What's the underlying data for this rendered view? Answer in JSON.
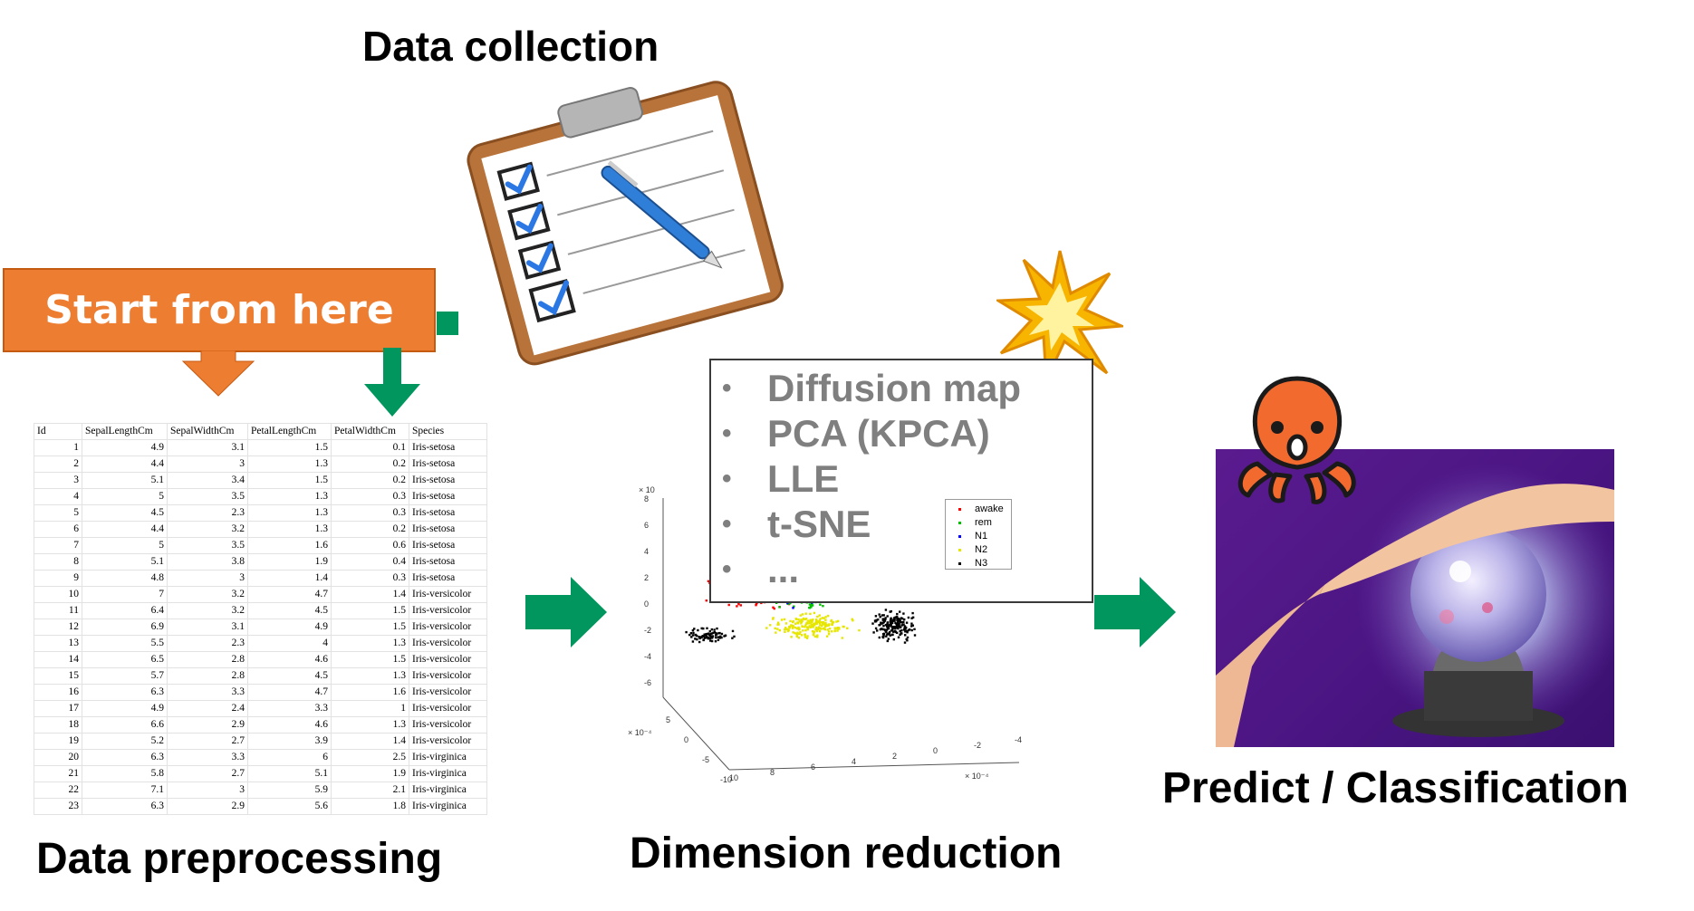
{
  "headings": {
    "data_collection": "Data collection",
    "data_preprocessing": "Data preprocessing",
    "dimension_reduction": "Dimension reduction",
    "predict": "Predict / Classification"
  },
  "start_label": "Start from here",
  "table": {
    "headers": [
      "Id",
      "SepalLengthCm",
      "SepalWidthCm",
      "PetalLengthCm",
      "PetalWidthCm",
      "Species"
    ],
    "rows": [
      [
        "1",
        "4.9",
        "3.1",
        "1.5",
        "0.1",
        "Iris-setosa"
      ],
      [
        "2",
        "4.4",
        "3",
        "1.3",
        "0.2",
        "Iris-setosa"
      ],
      [
        "3",
        "5.1",
        "3.4",
        "1.5",
        "0.2",
        "Iris-setosa"
      ],
      [
        "4",
        "5",
        "3.5",
        "1.3",
        "0.3",
        "Iris-setosa"
      ],
      [
        "5",
        "4.5",
        "2.3",
        "1.3",
        "0.3",
        "Iris-setosa"
      ],
      [
        "6",
        "4.4",
        "3.2",
        "1.3",
        "0.2",
        "Iris-setosa"
      ],
      [
        "7",
        "5",
        "3.5",
        "1.6",
        "0.6",
        "Iris-setosa"
      ],
      [
        "8",
        "5.1",
        "3.8",
        "1.9",
        "0.4",
        "Iris-setosa"
      ],
      [
        "9",
        "4.8",
        "3",
        "1.4",
        "0.3",
        "Iris-setosa"
      ],
      [
        "10",
        "7",
        "3.2",
        "4.7",
        "1.4",
        "Iris-versicolor"
      ],
      [
        "11",
        "6.4",
        "3.2",
        "4.5",
        "1.5",
        "Iris-versicolor"
      ],
      [
        "12",
        "6.9",
        "3.1",
        "4.9",
        "1.5",
        "Iris-versicolor"
      ],
      [
        "13",
        "5.5",
        "2.3",
        "4",
        "1.3",
        "Iris-versicolor"
      ],
      [
        "14",
        "6.5",
        "2.8",
        "4.6",
        "1.5",
        "Iris-versicolor"
      ],
      [
        "15",
        "5.7",
        "2.8",
        "4.5",
        "1.3",
        "Iris-versicolor"
      ],
      [
        "16",
        "6.3",
        "3.3",
        "4.7",
        "1.6",
        "Iris-versicolor"
      ],
      [
        "17",
        "4.9",
        "2.4",
        "3.3",
        "1",
        "Iris-versicolor"
      ],
      [
        "18",
        "6.6",
        "2.9",
        "4.6",
        "1.3",
        "Iris-versicolor"
      ],
      [
        "19",
        "5.2",
        "2.7",
        "3.9",
        "1.4",
        "Iris-versicolor"
      ],
      [
        "20",
        "6.3",
        "3.3",
        "6",
        "2.5",
        "Iris-virginica"
      ],
      [
        "21",
        "5.8",
        "2.7",
        "5.1",
        "1.9",
        "Iris-virginica"
      ],
      [
        "22",
        "7.1",
        "3",
        "5.9",
        "2.1",
        "Iris-virginica"
      ],
      [
        "23",
        "6.3",
        "2.9",
        "5.6",
        "1.8",
        "Iris-virginica"
      ]
    ]
  },
  "methods": [
    "Diffusion map",
    "PCA (KPCA)",
    "LLE",
    "t-SNE",
    "..."
  ],
  "legend": [
    {
      "label": "awake",
      "color": "#ff0000"
    },
    {
      "label": "rem",
      "color": "#00c000"
    },
    {
      "label": "N1",
      "color": "#0000ff"
    },
    {
      "label": "N2",
      "color": "#e6e600"
    },
    {
      "label": "N3",
      "color": "#000000"
    }
  ],
  "axes": {
    "z_exp": "× 10",
    "z_ticks": [
      "8",
      "6",
      "4",
      "2",
      "0",
      "-2",
      "-4",
      "-6"
    ],
    "y_exp": "× 10⁻⁴",
    "y_ticks": [
      "5",
      "0",
      "-5",
      "-10"
    ],
    "x_exp": "× 10⁻⁴",
    "x_ticks": [
      "10",
      "8",
      "6",
      "4",
      "2",
      "0",
      "-2",
      "-4"
    ]
  },
  "colors": {
    "orange": "#ED7D31",
    "green_arrow": "#00965E",
    "gray_text": "#7F7F7F"
  },
  "icons": [
    "clipboard-icon",
    "explosion-icon",
    "octopus-icon",
    "crystal-ball-icon",
    "arrow-right-icon",
    "arrow-down-icon"
  ]
}
